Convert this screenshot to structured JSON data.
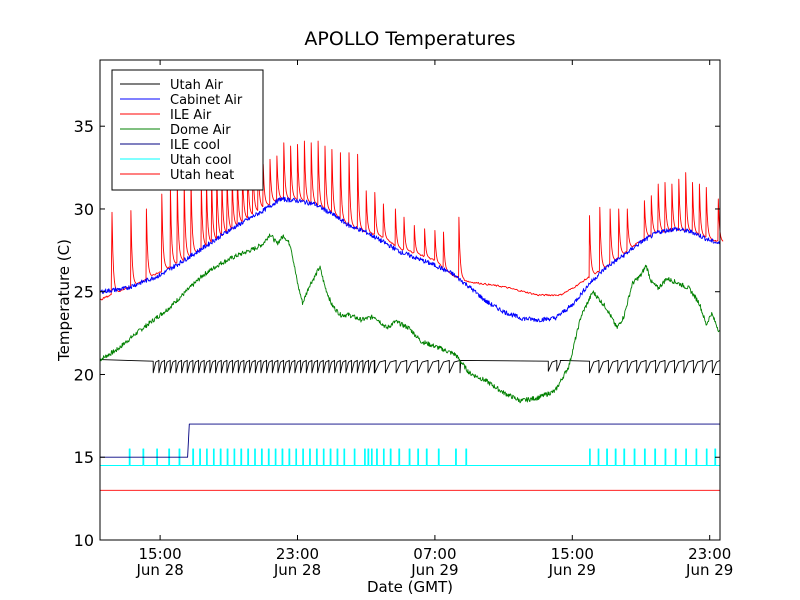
{
  "chart_data": {
    "type": "line",
    "title": "APOLLO Temperatures",
    "xlabel": "Date (GMT)",
    "ylabel": "Temperature (C)",
    "xlim": [
      11.5,
      47.6
    ],
    "ylim": [
      10,
      39
    ],
    "x_unit": "hours since Jun 28 00:00 GMT",
    "yticks": [
      10,
      15,
      20,
      25,
      30,
      35
    ],
    "xticks": [
      {
        "x": 15,
        "line1": "15:00",
        "line2": "Jun 28"
      },
      {
        "x": 23,
        "line1": "23:00",
        "line2": "Jun 28"
      },
      {
        "x": 31,
        "line1": "07:00",
        "line2": "Jun 29"
      },
      {
        "x": 39,
        "line1": "15:00",
        "line2": "Jun 29"
      },
      {
        "x": 47,
        "line1": "23:00",
        "line2": "Jun 29"
      }
    ],
    "legend_position": "top-left",
    "series": [
      {
        "name": "Utah Air",
        "color": "#000000",
        "kind": "sawtooth",
        "points": [
          [
            11.5,
            20.9
          ],
          [
            14,
            20.9
          ],
          [
            14.5,
            20.8
          ],
          [
            16,
            20.8
          ],
          [
            23,
            20.8
          ],
          [
            26,
            20.8
          ],
          [
            29,
            20.8
          ],
          [
            33,
            20.8
          ],
          [
            36,
            20.8
          ],
          [
            40,
            20.8
          ],
          [
            42,
            20.8
          ],
          [
            47.6,
            20.8
          ]
        ],
        "spike_segments": [
          [
            14.6,
            27.5,
            0.33,
            -0.7
          ],
          [
            27.5,
            32.5,
            0.62,
            -0.7
          ],
          [
            37.6,
            38.3,
            0.5,
            -0.6
          ],
          [
            40.0,
            47.6,
            0.55,
            -0.7
          ]
        ]
      },
      {
        "name": "Cabinet Air",
        "color": "#0000ff",
        "kind": "noisy",
        "points": [
          [
            11.5,
            25.0
          ],
          [
            13,
            25.2
          ],
          [
            15,
            26.0
          ],
          [
            17,
            27.3
          ],
          [
            19,
            28.7
          ],
          [
            21,
            29.9
          ],
          [
            22,
            30.6
          ],
          [
            23,
            30.5
          ],
          [
            24,
            30.3
          ],
          [
            25,
            29.7
          ],
          [
            26,
            29.0
          ],
          [
            27,
            28.6
          ],
          [
            28,
            28.0
          ],
          [
            29,
            27.4
          ],
          [
            30,
            27.0
          ],
          [
            31,
            26.6
          ],
          [
            32,
            26.1
          ],
          [
            33,
            25.3
          ],
          [
            34,
            24.4
          ],
          [
            35,
            23.8
          ],
          [
            36,
            23.4
          ],
          [
            37,
            23.3
          ],
          [
            38,
            23.4
          ],
          [
            39,
            24.2
          ],
          [
            40,
            25.5
          ],
          [
            41,
            26.5
          ],
          [
            42,
            27.2
          ],
          [
            43,
            28.0
          ],
          [
            44,
            28.6
          ],
          [
            45,
            28.8
          ],
          [
            46,
            28.6
          ],
          [
            47,
            28.1
          ],
          [
            47.6,
            27.9
          ]
        ]
      },
      {
        "name": "ILE Air",
        "color": "#ff0000",
        "kind": "spiky",
        "points": [
          [
            11.5,
            24.5
          ],
          [
            12.5,
            25.0
          ],
          [
            13.5,
            25.4
          ],
          [
            15,
            26.2
          ],
          [
            17,
            27.3
          ],
          [
            19,
            28.6
          ],
          [
            21,
            30.1
          ],
          [
            22,
            30.6
          ],
          [
            23,
            30.6
          ],
          [
            24,
            30.3
          ],
          [
            25,
            29.8
          ],
          [
            26,
            29.0
          ],
          [
            27,
            28.6
          ],
          [
            28,
            28.3
          ],
          [
            29,
            27.6
          ],
          [
            30,
            27.3
          ],
          [
            31,
            26.9
          ],
          [
            32,
            26.0
          ],
          [
            33,
            25.6
          ],
          [
            35,
            25.3
          ],
          [
            37,
            24.8
          ],
          [
            38.3,
            24.8
          ],
          [
            39,
            25.2
          ],
          [
            40,
            25.9
          ],
          [
            41,
            26.5
          ],
          [
            42,
            27.3
          ],
          [
            43,
            28.1
          ],
          [
            44,
            28.6
          ],
          [
            45,
            28.7
          ],
          [
            46,
            28.6
          ],
          [
            47,
            28.2
          ],
          [
            47.6,
            28.0
          ]
        ],
        "spikes": [
          [
            12.2,
            29.8
          ],
          [
            13.3,
            29.9
          ],
          [
            14.2,
            30.0
          ],
          [
            15.1,
            30.9
          ],
          [
            15.6,
            31.3
          ],
          [
            16.0,
            31.6
          ],
          [
            16.4,
            31.6
          ],
          [
            16.8,
            31.8
          ],
          [
            17.4,
            31.5
          ],
          [
            17.7,
            31.7
          ],
          [
            18.0,
            31.9
          ],
          [
            18.3,
            32.1
          ],
          [
            18.6,
            31.8
          ],
          [
            18.9,
            31.9
          ],
          [
            19.2,
            31.9
          ],
          [
            19.5,
            32.0
          ],
          [
            19.8,
            32.3
          ],
          [
            20.1,
            32.6
          ],
          [
            20.4,
            32.8
          ],
          [
            20.7,
            33.0
          ],
          [
            21.0,
            32.7
          ],
          [
            21.4,
            33.0
          ],
          [
            21.8,
            33.2
          ],
          [
            22.2,
            34.0
          ],
          [
            22.6,
            33.8
          ],
          [
            23.0,
            33.9
          ],
          [
            23.4,
            34.1
          ],
          [
            23.8,
            34.0
          ],
          [
            24.2,
            34.1
          ],
          [
            24.6,
            33.8
          ],
          [
            25.0,
            33.6
          ],
          [
            25.5,
            33.4
          ],
          [
            26.0,
            33.4
          ],
          [
            26.5,
            33.3
          ],
          [
            27.0,
            31.1
          ],
          [
            27.5,
            31.0
          ],
          [
            28.0,
            30.3
          ],
          [
            28.7,
            30.0
          ],
          [
            29.2,
            29.5
          ],
          [
            29.8,
            29.0
          ],
          [
            30.4,
            28.8
          ],
          [
            31.0,
            28.7
          ],
          [
            31.5,
            28.6
          ],
          [
            32.4,
            29.5
          ],
          [
            40.0,
            29.6
          ],
          [
            40.6,
            30.1
          ],
          [
            41.2,
            30.0
          ],
          [
            41.7,
            30.0
          ],
          [
            42.2,
            30.0
          ],
          [
            43.2,
            30.5
          ],
          [
            43.6,
            30.8
          ],
          [
            44.0,
            31.5
          ],
          [
            44.4,
            31.6
          ],
          [
            44.8,
            31.5
          ],
          [
            45.2,
            31.8
          ],
          [
            45.6,
            32.2
          ],
          [
            46.0,
            31.6
          ],
          [
            46.4,
            31.5
          ],
          [
            46.8,
            31.3
          ],
          [
            47.5,
            30.6
          ]
        ]
      },
      {
        "name": "Dome Air",
        "color": "#008000",
        "kind": "noisy",
        "points": [
          [
            11.5,
            20.9
          ],
          [
            12.5,
            21.5
          ],
          [
            13.5,
            22.4
          ],
          [
            14.5,
            23.2
          ],
          [
            15.5,
            24.0
          ],
          [
            16.5,
            25.0
          ],
          [
            17.5,
            26.0
          ],
          [
            18.5,
            26.7
          ],
          [
            19.5,
            27.2
          ],
          [
            20.5,
            27.6
          ],
          [
            21,
            27.9
          ],
          [
            21.4,
            28.5
          ],
          [
            21.8,
            27.9
          ],
          [
            22.2,
            28.4
          ],
          [
            22.6,
            27.8
          ],
          [
            23,
            25.5
          ],
          [
            23.3,
            24.3
          ],
          [
            23.7,
            25.4
          ],
          [
            24,
            25.9
          ],
          [
            24.3,
            26.5
          ],
          [
            24.6,
            25.3
          ],
          [
            25,
            24.2
          ],
          [
            25.5,
            23.6
          ],
          [
            26,
            23.6
          ],
          [
            26.7,
            23.3
          ],
          [
            27.5,
            23.5
          ],
          [
            28.2,
            22.8
          ],
          [
            28.7,
            23.2
          ],
          [
            29.5,
            22.8
          ],
          [
            30.2,
            22.0
          ],
          [
            31,
            21.7
          ],
          [
            31.5,
            21.5
          ],
          [
            32.2,
            21.2
          ],
          [
            33,
            20.1
          ],
          [
            34,
            19.6
          ],
          [
            35,
            18.9
          ],
          [
            36,
            18.4
          ],
          [
            37,
            18.6
          ],
          [
            38,
            19.0
          ],
          [
            38.8,
            20.5
          ],
          [
            39.5,
            23.5
          ],
          [
            40.2,
            25.0
          ],
          [
            41,
            24.0
          ],
          [
            41.6,
            22.8
          ],
          [
            42,
            23.5
          ],
          [
            42.5,
            25.5
          ],
          [
            43,
            26.0
          ],
          [
            43.3,
            26.6
          ],
          [
            43.6,
            25.6
          ],
          [
            44,
            25.2
          ],
          [
            44.5,
            25.8
          ],
          [
            45.2,
            25.5
          ],
          [
            45.8,
            25.2
          ],
          [
            46.4,
            24.3
          ],
          [
            46.8,
            23.0
          ],
          [
            47.1,
            23.7
          ],
          [
            47.6,
            22.5
          ]
        ]
      },
      {
        "name": "ILE cool",
        "color": "#000080",
        "kind": "step",
        "points": [
          [
            11.5,
            15.0
          ],
          [
            16.6,
            15.0
          ],
          [
            16.7,
            17.0
          ],
          [
            47.6,
            17.0
          ]
        ]
      },
      {
        "name": "Utah cool",
        "color": "#00ffff",
        "kind": "pulses",
        "base": 14.5,
        "top": 15.5,
        "pulses": [
          13.2,
          14.0,
          14.8,
          15.5,
          16.1,
          16.9,
          17.3,
          17.7,
          18.1,
          18.5,
          18.9,
          19.3,
          19.7,
          20.1,
          20.5,
          20.9,
          21.3,
          21.7,
          22.1,
          22.5,
          22.9,
          23.3,
          23.7,
          24.1,
          24.5,
          24.9,
          25.3,
          25.7,
          26.3,
          26.9,
          27.1,
          27.3,
          27.6,
          28.0,
          28.4,
          28.9,
          29.5,
          30.0,
          30.5,
          31.2,
          32.2,
          32.8,
          40.0,
          40.5,
          41.0,
          41.5,
          42.0,
          42.6,
          43.2,
          43.8,
          44.4,
          45.0,
          45.6,
          46.2,
          46.8,
          47.3
        ]
      },
      {
        "name": "Utah heat",
        "color": "#ff0000",
        "kind": "line",
        "points": [
          [
            11.5,
            13.0
          ],
          [
            47.6,
            13.0
          ]
        ]
      }
    ]
  }
}
